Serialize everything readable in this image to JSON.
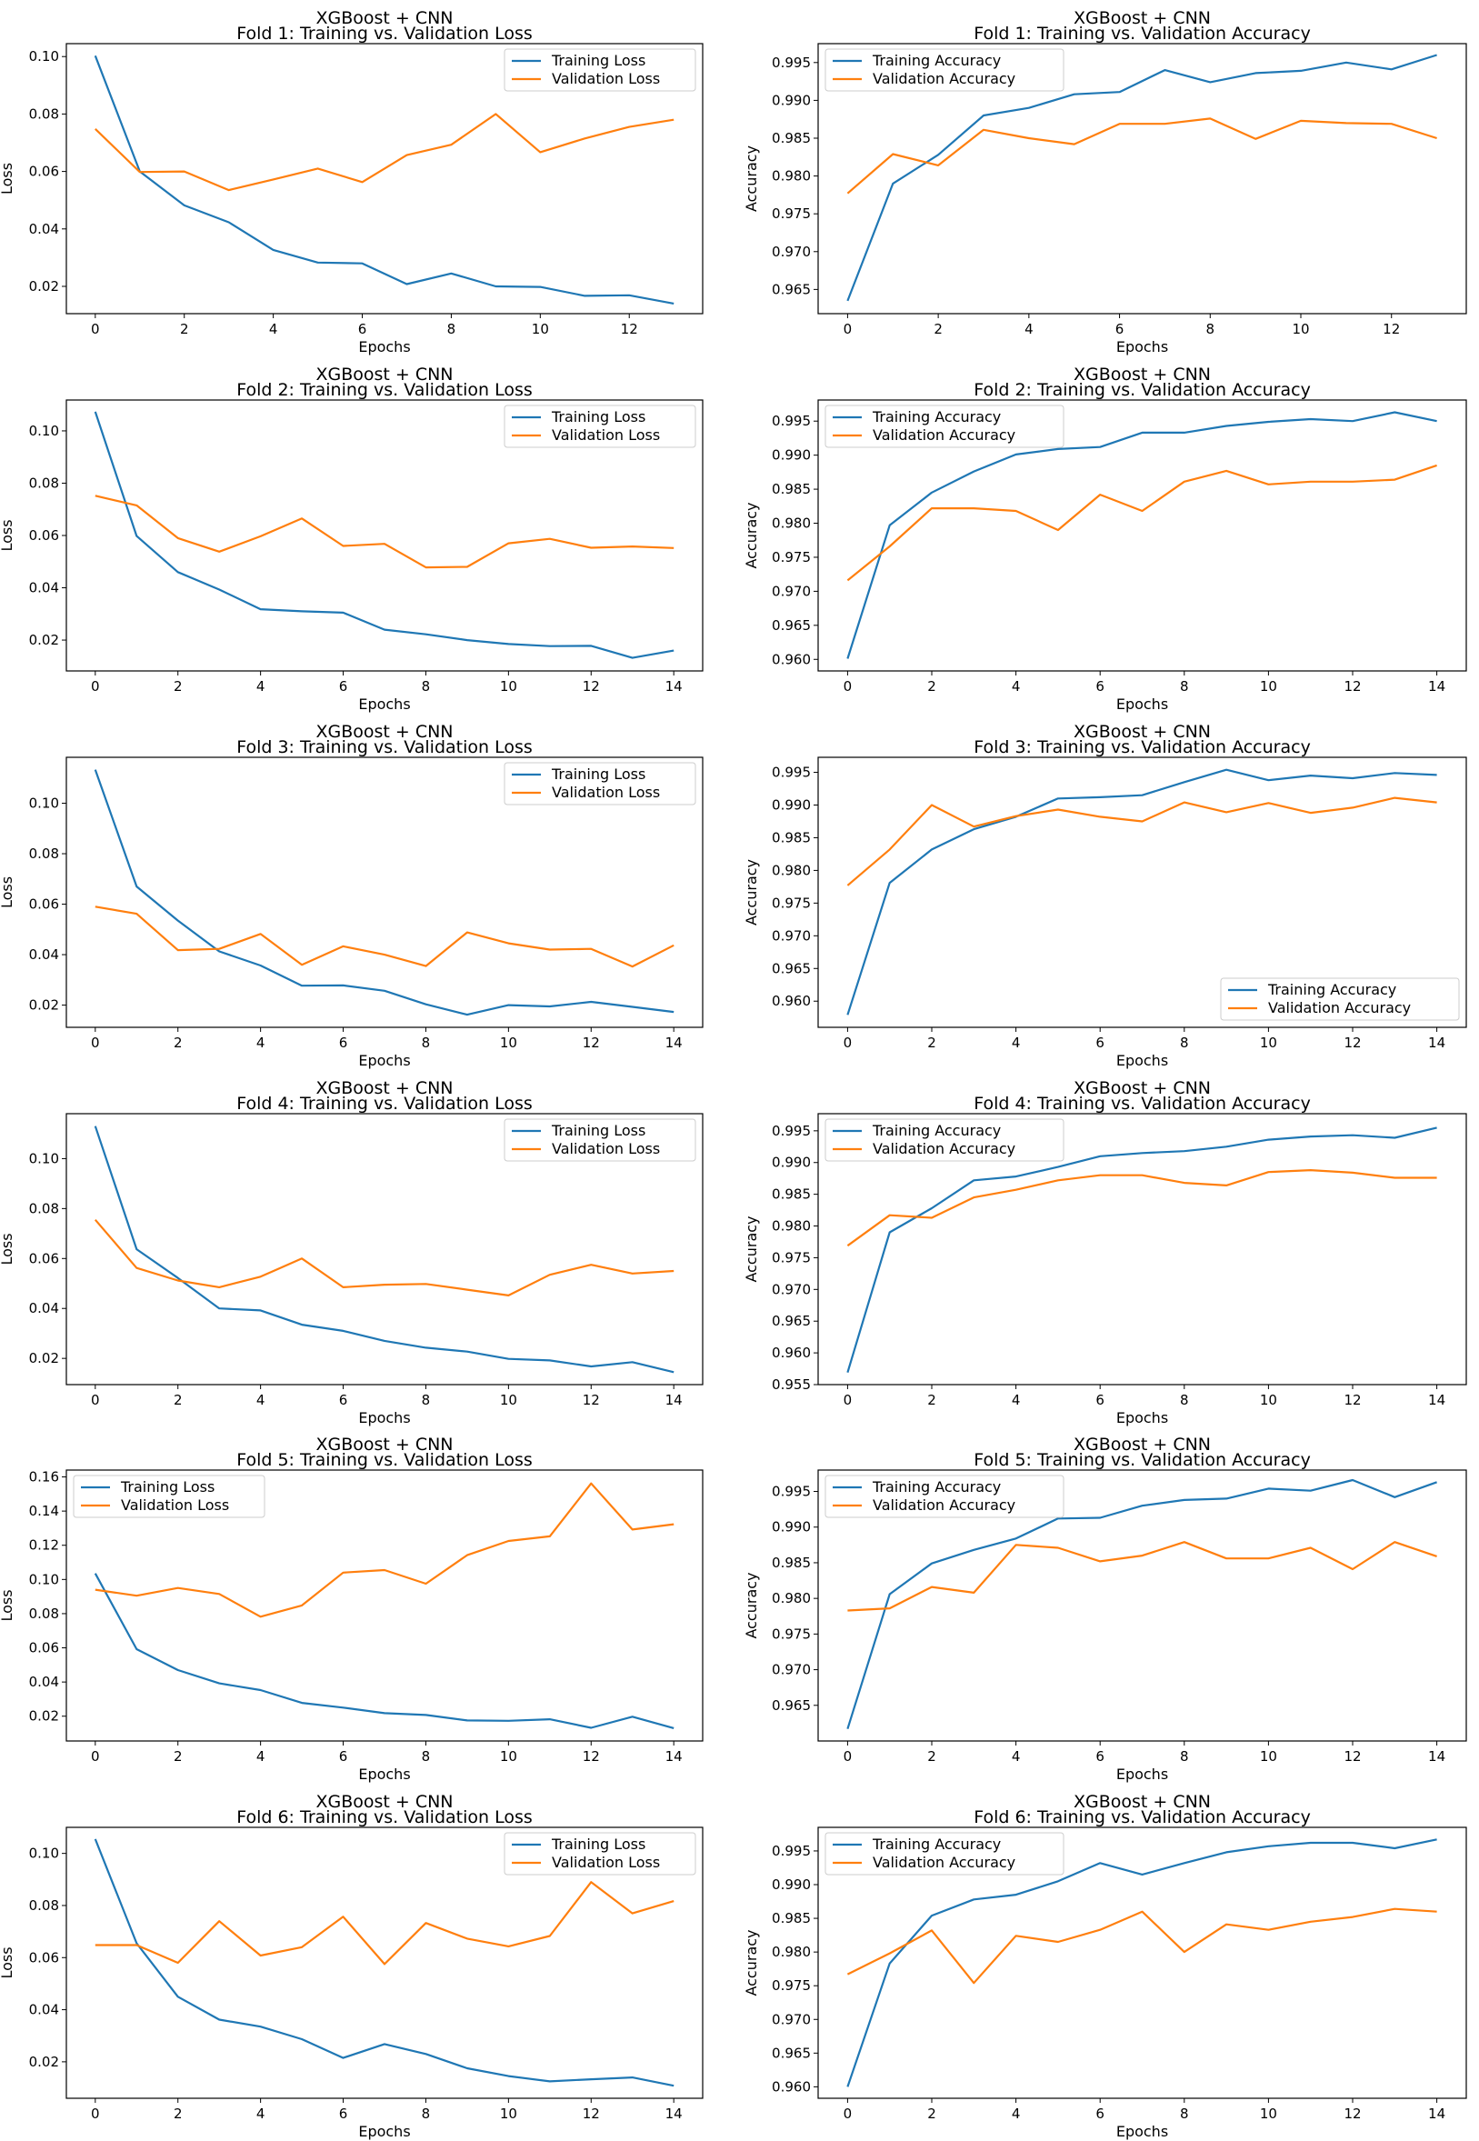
{
  "figure": {
    "series_colors": {
      "training": "#1f77b4",
      "validation": "#ff7f0e"
    }
  },
  "chart_data": [
    {
      "type": "line",
      "title": "XGBoost + CNN",
      "subtitle": "Fold 1: Training vs. Validation Loss",
      "xlabel": "Epochs",
      "ylabel": "Loss",
      "xlim": [
        -0.65,
        13.65
      ],
      "ylim": [
        0.0105,
        0.1045
      ],
      "xticks": [
        0,
        2,
        4,
        6,
        8,
        10,
        12
      ],
      "yticks": [
        0.02,
        0.04,
        0.06,
        0.08,
        0.1
      ],
      "yfmt": 2,
      "legend": "top-right",
      "series": [
        {
          "name": "Training Loss",
          "values": [
            0.1003,
            0.06,
            0.0482,
            0.0423,
            0.0327,
            0.0283,
            0.028,
            0.0208,
            0.0245,
            0.02,
            0.0198,
            0.0167,
            0.0169,
            0.014
          ]
        },
        {
          "name": "Validation Loss",
          "values": [
            0.0748,
            0.0598,
            0.06,
            0.0535,
            0.0572,
            0.061,
            0.0563,
            0.0657,
            0.0693,
            0.08,
            0.0667,
            0.0715,
            0.0755,
            0.078
          ]
        }
      ]
    },
    {
      "type": "line",
      "title": "XGBoost + CNN",
      "subtitle": "Fold 1: Training vs. Validation Accuracy",
      "xlabel": "Epochs",
      "ylabel": "Accuracy",
      "xlim": [
        -0.65,
        13.65
      ],
      "ylim": [
        0.9618,
        0.9975
      ],
      "xticks": [
        0,
        2,
        4,
        6,
        8,
        10,
        12
      ],
      "yticks": [
        0.965,
        0.97,
        0.975,
        0.98,
        0.985,
        0.99,
        0.995
      ],
      "yfmt": 3,
      "legend": "top-left",
      "series": [
        {
          "name": "Training Accuracy",
          "values": [
            0.9635,
            0.979,
            0.9828,
            0.988,
            0.989,
            0.9908,
            0.9911,
            0.994,
            0.9924,
            0.9936,
            0.9939,
            0.995,
            0.9941,
            0.996
          ]
        },
        {
          "name": "Validation Accuracy",
          "values": [
            0.9777,
            0.9829,
            0.9814,
            0.9861,
            0.985,
            0.9842,
            0.9869,
            0.9869,
            0.9876,
            0.9849,
            0.9873,
            0.987,
            0.9869,
            0.985
          ]
        }
      ]
    },
    {
      "type": "line",
      "title": "XGBoost + CNN",
      "subtitle": "Fold 2: Training vs. Validation Loss",
      "xlabel": "Epochs",
      "ylabel": "Loss",
      "xlim": [
        -0.7,
        14.7
      ],
      "ylim": [
        0.0082,
        0.1118
      ],
      "xticks": [
        0,
        2,
        4,
        6,
        8,
        10,
        12,
        14
      ],
      "yticks": [
        0.02,
        0.04,
        0.06,
        0.08,
        0.1
      ],
      "yfmt": 2,
      "legend": "top-right",
      "series": [
        {
          "name": "Training Loss",
          "values": [
            0.1073,
            0.0598,
            0.046,
            0.0393,
            0.0318,
            0.031,
            0.0305,
            0.024,
            0.0222,
            0.02,
            0.0185,
            0.0177,
            0.0178,
            0.0132,
            0.016
          ]
        },
        {
          "name": "Validation Loss",
          "values": [
            0.0752,
            0.0715,
            0.059,
            0.0538,
            0.0597,
            0.0665,
            0.056,
            0.0568,
            0.0478,
            0.048,
            0.057,
            0.0587,
            0.0553,
            0.0558,
            0.0552
          ]
        }
      ]
    },
    {
      "type": "line",
      "title": "XGBoost + CNN",
      "subtitle": "Fold 2: Training vs. Validation Accuracy",
      "xlabel": "Epochs",
      "ylabel": "Accuracy",
      "xlim": [
        -0.7,
        14.7
      ],
      "ylim": [
        0.9583,
        0.9981
      ],
      "xticks": [
        0,
        2,
        4,
        6,
        8,
        10,
        12,
        14
      ],
      "yticks": [
        0.96,
        0.965,
        0.97,
        0.975,
        0.98,
        0.985,
        0.99,
        0.995
      ],
      "yfmt": 3,
      "legend": "top-left",
      "series": [
        {
          "name": "Training Accuracy",
          "values": [
            0.9601,
            0.9797,
            0.9845,
            0.9876,
            0.9901,
            0.9909,
            0.9912,
            0.9933,
            0.9933,
            0.9943,
            0.9949,
            0.9953,
            0.995,
            0.9963,
            0.995
          ]
        },
        {
          "name": "Validation Accuracy",
          "values": [
            0.9716,
            0.9766,
            0.9822,
            0.9822,
            0.9818,
            0.979,
            0.9842,
            0.9818,
            0.9861,
            0.9877,
            0.9857,
            0.9861,
            0.9861,
            0.9864,
            0.9885
          ]
        }
      ]
    },
    {
      "type": "line",
      "title": "XGBoost + CNN",
      "subtitle": "Fold 3: Training vs. Validation Loss",
      "xlabel": "Epochs",
      "ylabel": "Loss",
      "xlim": [
        -0.7,
        14.7
      ],
      "ylim": [
        0.0112,
        0.1182
      ],
      "xticks": [
        0,
        2,
        4,
        6,
        8,
        10,
        12,
        14
      ],
      "yticks": [
        0.02,
        0.04,
        0.06,
        0.08,
        0.1
      ],
      "yfmt": 2,
      "legend": "top-right",
      "series": [
        {
          "name": "Training Loss",
          "values": [
            0.1133,
            0.067,
            0.0535,
            0.0413,
            0.0357,
            0.0277,
            0.0278,
            0.0257,
            0.0203,
            0.0162,
            0.02,
            0.0195,
            0.0213,
            0.0193,
            0.0173
          ]
        },
        {
          "name": "Validation Loss",
          "values": [
            0.059,
            0.0562,
            0.0418,
            0.0423,
            0.0482,
            0.036,
            0.0433,
            0.04,
            0.0355,
            0.0488,
            0.0445,
            0.042,
            0.0423,
            0.0353,
            0.0437
          ]
        }
      ]
    },
    {
      "type": "line",
      "title": "XGBoost + CNN",
      "subtitle": "Fold 3: Training vs. Validation Accuracy",
      "xlabel": "Epochs",
      "ylabel": "Accuracy",
      "xlim": [
        -0.7,
        14.7
      ],
      "ylim": [
        0.956,
        0.9973
      ],
      "xticks": [
        0,
        2,
        4,
        6,
        8,
        10,
        12,
        14
      ],
      "yticks": [
        0.96,
        0.965,
        0.97,
        0.975,
        0.98,
        0.985,
        0.99,
        0.995
      ],
      "yfmt": 3,
      "legend": "bottom-right",
      "series": [
        {
          "name": "Training Accuracy",
          "values": [
            0.9579,
            0.9781,
            0.9832,
            0.9863,
            0.9882,
            0.991,
            0.9912,
            0.9915,
            0.9935,
            0.9954,
            0.9938,
            0.9945,
            0.9941,
            0.9949,
            0.9946
          ]
        },
        {
          "name": "Validation Accuracy",
          "values": [
            0.9777,
            0.9832,
            0.99,
            0.9867,
            0.9883,
            0.9893,
            0.9882,
            0.9875,
            0.9904,
            0.9889,
            0.9903,
            0.9888,
            0.9896,
            0.9911,
            0.9904
          ]
        }
      ]
    },
    {
      "type": "line",
      "title": "XGBoost + CNN",
      "subtitle": "Fold 4: Training vs. Validation Loss",
      "xlabel": "Epochs",
      "ylabel": "Loss",
      "xlim": [
        -0.7,
        14.7
      ],
      "ylim": [
        0.0095,
        0.118
      ],
      "xticks": [
        0,
        2,
        4,
        6,
        8,
        10,
        12,
        14
      ],
      "yticks": [
        0.02,
        0.04,
        0.06,
        0.08,
        0.1
      ],
      "yfmt": 2,
      "legend": "top-right",
      "series": [
        {
          "name": "Training Loss",
          "values": [
            0.113,
            0.0637,
            0.0522,
            0.04,
            0.0392,
            0.0335,
            0.031,
            0.027,
            0.0243,
            0.0227,
            0.0198,
            0.0192,
            0.0168,
            0.0185,
            0.0145
          ]
        },
        {
          "name": "Validation Loss",
          "values": [
            0.0755,
            0.0562,
            0.0512,
            0.0485,
            0.0527,
            0.06,
            0.0485,
            0.0495,
            0.0498,
            0.0475,
            0.0452,
            0.0535,
            0.0575,
            0.054,
            0.055
          ]
        }
      ]
    },
    {
      "type": "line",
      "title": "XGBoost + CNN",
      "subtitle": "Fold 4: Training vs. Validation Accuracy",
      "xlabel": "Epochs",
      "ylabel": "Accuracy",
      "xlim": [
        -0.7,
        14.7
      ],
      "ylim": [
        0.955,
        0.9977
      ],
      "xticks": [
        0,
        2,
        4,
        6,
        8,
        10,
        12,
        14
      ],
      "yticks": [
        0.955,
        0.96,
        0.965,
        0.97,
        0.975,
        0.98,
        0.985,
        0.99,
        0.995
      ],
      "yfmt": 3,
      "legend": "top-left",
      "series": [
        {
          "name": "Training Accuracy",
          "values": [
            0.9569,
            0.979,
            0.9828,
            0.9872,
            0.9878,
            0.9893,
            0.991,
            0.9915,
            0.9918,
            0.9925,
            0.9936,
            0.9941,
            0.9943,
            0.9939,
            0.9955
          ]
        },
        {
          "name": "Validation Accuracy",
          "values": [
            0.9769,
            0.9817,
            0.9813,
            0.9845,
            0.9857,
            0.9872,
            0.988,
            0.988,
            0.9868,
            0.9864,
            0.9885,
            0.9888,
            0.9884,
            0.9876,
            0.9876
          ]
        }
      ]
    },
    {
      "type": "line",
      "title": "XGBoost + CNN",
      "subtitle": "Fold 5: Training vs. Validation Loss",
      "xlabel": "Epochs",
      "ylabel": "Loss",
      "xlim": [
        -0.7,
        14.7
      ],
      "ylim": [
        0.0055,
        0.164
      ],
      "xticks": [
        0,
        2,
        4,
        6,
        8,
        10,
        12,
        14
      ],
      "yticks": [
        0.02,
        0.04,
        0.06,
        0.08,
        0.1,
        0.12,
        0.14,
        0.16
      ],
      "yfmt": 2,
      "legend": "top-left",
      "series": [
        {
          "name": "Training Loss",
          "values": [
            0.1035,
            0.0592,
            0.047,
            0.0392,
            0.0353,
            0.0278,
            0.025,
            0.0218,
            0.0207,
            0.0175,
            0.0173,
            0.0182,
            0.0132,
            0.0197,
            0.013
          ]
        },
        {
          "name": "Validation Loss",
          "values": [
            0.094,
            0.0905,
            0.095,
            0.0915,
            0.0782,
            0.0848,
            0.104,
            0.1055,
            0.0975,
            0.1142,
            0.1225,
            0.1252,
            0.1562,
            0.1292,
            0.1323
          ]
        }
      ]
    },
    {
      "type": "line",
      "title": "XGBoost + CNN",
      "subtitle": "Fold 5: Training vs. Validation Accuracy",
      "xlabel": "Epochs",
      "ylabel": "Accuracy",
      "xlim": [
        -0.7,
        14.7
      ],
      "ylim": [
        0.96,
        0.998
      ],
      "xticks": [
        0,
        2,
        4,
        6,
        8,
        10,
        12,
        14
      ],
      "yticks": [
        0.965,
        0.97,
        0.975,
        0.98,
        0.985,
        0.99,
        0.995
      ],
      "yfmt": 3,
      "legend": "top-left",
      "series": [
        {
          "name": "Training Accuracy",
          "values": [
            0.9617,
            0.9806,
            0.9849,
            0.9868,
            0.9884,
            0.9912,
            0.9913,
            0.993,
            0.9938,
            0.994,
            0.9954,
            0.9951,
            0.9966,
            0.9942,
            0.9963
          ]
        },
        {
          "name": "Validation Accuracy",
          "values": [
            0.9783,
            0.9786,
            0.9816,
            0.9808,
            0.9875,
            0.9871,
            0.9852,
            0.986,
            0.9879,
            0.9856,
            0.9856,
            0.9871,
            0.9841,
            0.9879,
            0.9859
          ]
        }
      ]
    },
    {
      "type": "line",
      "title": "XGBoost + CNN",
      "subtitle": "Fold 6: Training vs. Validation Loss",
      "xlabel": "Epochs",
      "ylabel": "Loss",
      "xlim": [
        -0.7,
        14.7
      ],
      "ylim": [
        0.006,
        0.11
      ],
      "xticks": [
        0,
        2,
        4,
        6,
        8,
        10,
        12,
        14
      ],
      "yticks": [
        0.02,
        0.04,
        0.06,
        0.08,
        0.1
      ],
      "yfmt": 2,
      "legend": "top-right",
      "series": [
        {
          "name": "Training Loss",
          "values": [
            0.1055,
            0.0655,
            0.045,
            0.0362,
            0.0335,
            0.0287,
            0.0215,
            0.0268,
            0.023,
            0.0175,
            0.0145,
            0.0125,
            0.0133,
            0.014,
            0.0108
          ]
        },
        {
          "name": "Validation Loss",
          "values": [
            0.0648,
            0.0648,
            0.058,
            0.074,
            0.0608,
            0.064,
            0.0757,
            0.0575,
            0.0733,
            0.0673,
            0.0643,
            0.0683,
            0.089,
            0.077,
            0.0817
          ]
        }
      ]
    },
    {
      "type": "line",
      "title": "XGBoost + CNN",
      "subtitle": "Fold 6: Training vs. Validation Accuracy",
      "xlabel": "Epochs",
      "ylabel": "Accuracy",
      "xlim": [
        -0.7,
        14.7
      ],
      "ylim": [
        0.9583,
        0.9985
      ],
      "xticks": [
        0,
        2,
        4,
        6,
        8,
        10,
        12,
        14
      ],
      "yticks": [
        0.96,
        0.965,
        0.97,
        0.975,
        0.98,
        0.985,
        0.99,
        0.995
      ],
      "yfmt": 3,
      "legend": "top-left",
      "series": [
        {
          "name": "Training Accuracy",
          "values": [
            0.96,
            0.9783,
            0.9854,
            0.9878,
            0.9885,
            0.9905,
            0.9932,
            0.9915,
            0.9932,
            0.9948,
            0.9957,
            0.9962,
            0.9962,
            0.9954,
            0.9967
          ]
        },
        {
          "name": "Validation Accuracy",
          "values": [
            0.9767,
            0.9798,
            0.9832,
            0.9754,
            0.9824,
            0.9815,
            0.9833,
            0.986,
            0.98,
            0.9841,
            0.9833,
            0.9845,
            0.9852,
            0.9864,
            0.986
          ]
        }
      ]
    }
  ]
}
